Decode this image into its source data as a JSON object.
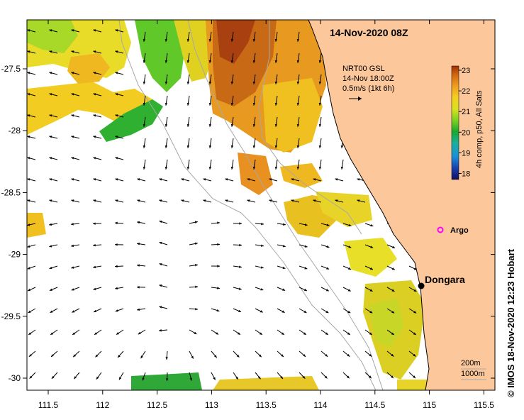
{
  "title": "14-Nov-2020 08Z",
  "credit": "IMOS 18-Nov-2020 12:23 Hobart",
  "copyright_symbol": "©",
  "axes": {
    "x_ticks": [
      "111.5",
      "112",
      "112.5",
      "113",
      "113.5",
      "114",
      "114.5",
      "115",
      "115.5"
    ],
    "y_ticks": [
      "-27.5",
      "-28",
      "-28.5",
      "-29",
      "-29.5",
      "-30"
    ]
  },
  "current_legend": {
    "line1": "NRT00 GSL",
    "line2": "14-Nov 18:00Z",
    "line3": "0.5m/s (1kt 6h)"
  },
  "colorbar": {
    "label": "4h comp, p50, All Sats",
    "ticks": [
      "23",
      "22",
      "21",
      "20",
      "19",
      "18"
    ],
    "range": [
      17.5,
      23
    ],
    "colors": [
      "#1a0f6e",
      "#1a55c8",
      "#17b0d8",
      "#18b040",
      "#60d020",
      "#c8e020",
      "#f5d820",
      "#f0a020",
      "#d06a10",
      "#a83808"
    ]
  },
  "markers": {
    "argo": "Argo",
    "dongara": "Dongara"
  },
  "depth_legend": {
    "line1": "200m",
    "line2": "1000m"
  },
  "colors": {
    "land": "#fcc79a",
    "coast": "#000000",
    "argo": "#ff00ff",
    "bathymetry": "#a8a8a8"
  }
}
